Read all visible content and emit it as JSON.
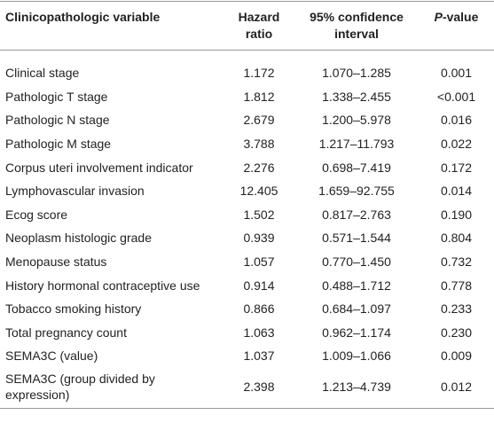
{
  "table": {
    "header": [
      "Clinicopathologic variable",
      "Hazard ratio",
      "95% confidence interval",
      "P-value"
    ],
    "rows": [
      [
        "Clinical stage",
        "1.172",
        "1.070–1.285",
        "0.001"
      ],
      [
        "Pathologic T stage",
        "1.812",
        "1.338–2.455",
        "<0.001"
      ],
      [
        "Pathologic N stage",
        "2.679",
        "1.200–5.978",
        "0.016"
      ],
      [
        "Pathologic M stage",
        "3.788",
        "1.217–11.793",
        "0.022"
      ],
      [
        "Corpus uteri involvement indicator",
        "2.276",
        "0.698–7.419",
        "0.172"
      ],
      [
        "Lymphovascular invasion",
        "12.405",
        "1.659–92.755",
        "0.014"
      ],
      [
        "Ecog score",
        "1.502",
        "0.817–2.763",
        "0.190"
      ],
      [
        "Neoplasm histologic grade",
        "0.939",
        "0.571–1.544",
        "0.804"
      ],
      [
        "Menopause status",
        "1.057",
        "0.770–1.450",
        "0.732"
      ],
      [
        "History hormonal contraceptive use",
        "0.914",
        "0.488–1.712",
        "0.778"
      ],
      [
        "Tobacco smoking history",
        "0.866",
        "0.684–1.097",
        "0.233"
      ],
      [
        "Total pregnancy count",
        "1.063",
        "0.962–1.174",
        "0.230"
      ],
      [
        "SEMA3C (value)",
        "1.037",
        "1.009–1.066",
        "0.009"
      ],
      [
        "SEMA3C (group divided by expression)",
        "2.398",
        "1.213–4.739",
        "0.012"
      ]
    ]
  }
}
